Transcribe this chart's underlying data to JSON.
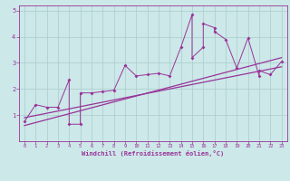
{
  "xlabel": "Windchill (Refroidissement éolien,°C)",
  "bg_color": "#cce8e8",
  "grid_color": "#aacccc",
  "line_color": "#993399",
  "xlim": [
    -0.5,
    23.5
  ],
  "ylim": [
    0,
    5.2
  ],
  "scatter_x": [
    0,
    1,
    2,
    3,
    4,
    4,
    5,
    5,
    6,
    7,
    8,
    9,
    10,
    11,
    12,
    13,
    14,
    15,
    15,
    16,
    16,
    17,
    17,
    18,
    19,
    20,
    21,
    21,
    22,
    23
  ],
  "scatter_y": [
    0.75,
    1.4,
    1.3,
    1.3,
    2.35,
    0.65,
    0.65,
    1.85,
    1.85,
    1.9,
    1.95,
    2.9,
    2.5,
    2.55,
    2.6,
    2.5,
    3.6,
    4.85,
    3.2,
    3.6,
    4.5,
    4.35,
    4.2,
    3.9,
    2.8,
    3.95,
    2.5,
    2.7,
    2.55,
    3.05
  ],
  "line1_x": [
    0,
    23
  ],
  "line1_y": [
    0.9,
    2.85
  ],
  "line2_x": [
    0,
    23
  ],
  "line2_y": [
    0.6,
    3.2
  ],
  "xticks": [
    0,
    1,
    2,
    3,
    4,
    5,
    6,
    7,
    8,
    9,
    10,
    11,
    12,
    13,
    14,
    15,
    16,
    17,
    18,
    19,
    20,
    21,
    22,
    23
  ],
  "yticks": [
    1,
    2,
    3,
    4,
    5
  ]
}
